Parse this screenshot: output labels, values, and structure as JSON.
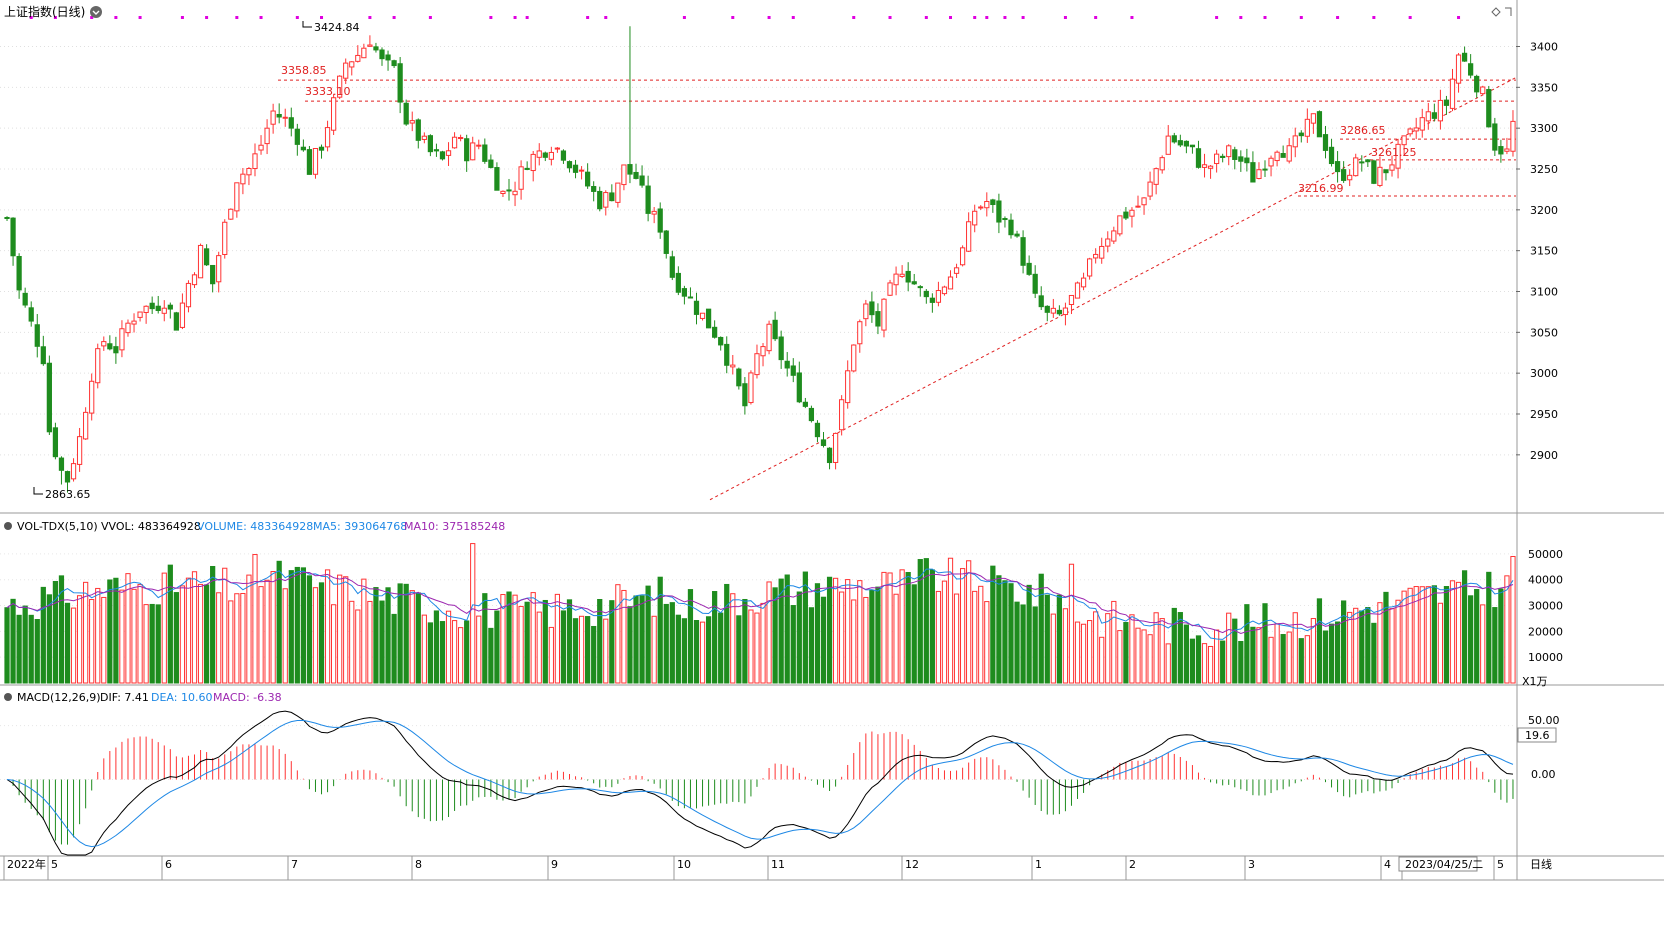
{
  "window": {
    "title": "上证指数(日线)",
    "period_label": "日线"
  },
  "colors": {
    "up": "#ff3333",
    "down": "#1e8c1e",
    "ma5": "#1e88e5",
    "ma10": "#9c27b0",
    "dif": "#000000",
    "dea": "#1e88e5",
    "accent_magenta": "#e000e0",
    "level_line": "#e02020"
  },
  "main_panel": {
    "y_ticks": [
      "3400",
      "3350",
      "3300",
      "3250",
      "3200",
      "3150",
      "3100",
      "3050",
      "3000",
      "2950",
      "2900"
    ],
    "high_label": "3424.84",
    "low_label": "2863.65",
    "level_labels": [
      "3358.85",
      "3333.10",
      "3286.65",
      "3261.25",
      "3216.99"
    ]
  },
  "volume_panel": {
    "indicator": "VOL-TDX(5,10)",
    "vvol_label": "VVOL: 483364928",
    "volume_label": "VOLUME: 483364928",
    "ma5_label": "MA5: 393064768",
    "ma10_label": "MA10: 375185248",
    "y_ticks": [
      "50000",
      "40000",
      "30000",
      "20000",
      "10000"
    ],
    "unit": "X1万"
  },
  "macd_panel": {
    "indicator": "MACD(12,26,9)",
    "dif_label": "DIF: 7.41",
    "dea_label": "DEA: 10.60",
    "macd_label": "MACD: -6.38",
    "y_ticks": [
      "50.00",
      "0.00"
    ],
    "current_value": "19.6"
  },
  "x_axis": {
    "labels": [
      "2022年",
      "5",
      "6",
      "7",
      "8",
      "9",
      "10",
      "11",
      "12",
      "1",
      "2",
      "3",
      "4",
      "2023/04/25/二",
      "5"
    ]
  },
  "chart_data": {
    "type": "candlestick",
    "title": "上证指数(日线)",
    "price_range": [
      2830,
      3430
    ],
    "high": 3424.84,
    "low": 2863.65,
    "levels": [
      3358.85,
      3333.1,
      3286.65,
      3261.25,
      3216.99
    ],
    "approx_close_path": [
      {
        "month": "2022-04",
        "close": 3050
      },
      {
        "month": "2022-05",
        "close": 3150
      },
      {
        "month": "2022-06",
        "close": 3400
      },
      {
        "month": "2022-07",
        "close": 3250
      },
      {
        "month": "2022-08",
        "close": 3230
      },
      {
        "month": "2022-09",
        "close": 3020
      },
      {
        "month": "2022-10",
        "close": 2900
      },
      {
        "month": "2022-11",
        "close": 3150
      },
      {
        "month": "2022-12",
        "close": 3090
      },
      {
        "month": "2023-01",
        "close": 3260
      },
      {
        "month": "2023-02",
        "close": 3280
      },
      {
        "month": "2023-03",
        "close": 3270
      },
      {
        "month": "2023-04",
        "close": 3350
      }
    ],
    "volume_unit": "万",
    "volume_range": [
      0,
      55000
    ],
    "macd_range": [
      -70,
      70
    ]
  }
}
